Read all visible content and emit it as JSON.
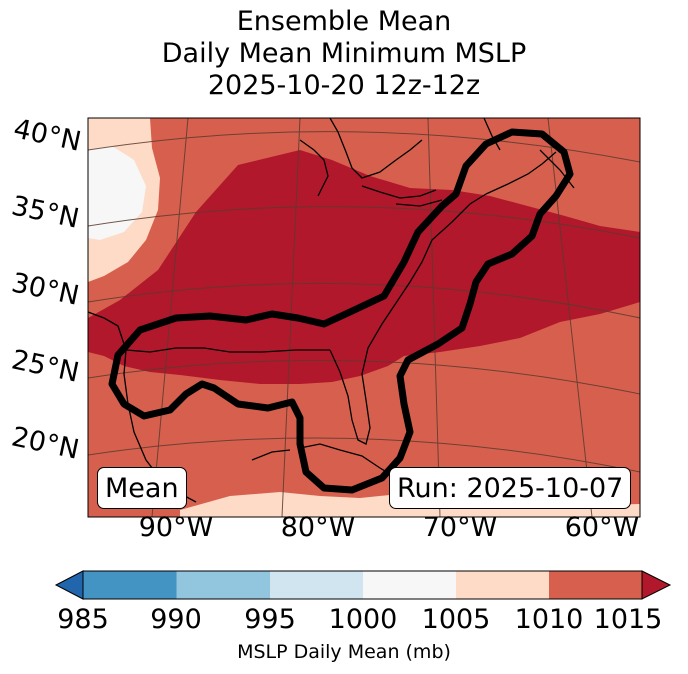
{
  "title": {
    "line1": "Ensemble Mean",
    "line2": "Daily Mean Minimum MSLP",
    "line3": "2025-10-20 12z-12z"
  },
  "map": {
    "lat_labels": [
      "40°N",
      "35°N",
      "30°N",
      "25°N",
      "20°N"
    ],
    "lon_labels": [
      "90°W",
      "80°W",
      "70°W",
      "60°W"
    ],
    "left_box": "Mean",
    "right_box": "Run: 2025-10-07",
    "colors": {
      "land_line": "#000000",
      "contour": "#000000",
      "grid": "#5a3a30"
    }
  },
  "colorbar": {
    "ticks": [
      "985",
      "990",
      "995",
      "1000",
      "1005",
      "1010",
      "1015"
    ],
    "label": "MSLP Daily Mean (mb)",
    "colors": [
      "#2166ac",
      "#4393c3",
      "#92c5de",
      "#d1e5f0",
      "#f7f7f7",
      "#fddbc7",
      "#d6604d",
      "#b2182b"
    ]
  }
}
